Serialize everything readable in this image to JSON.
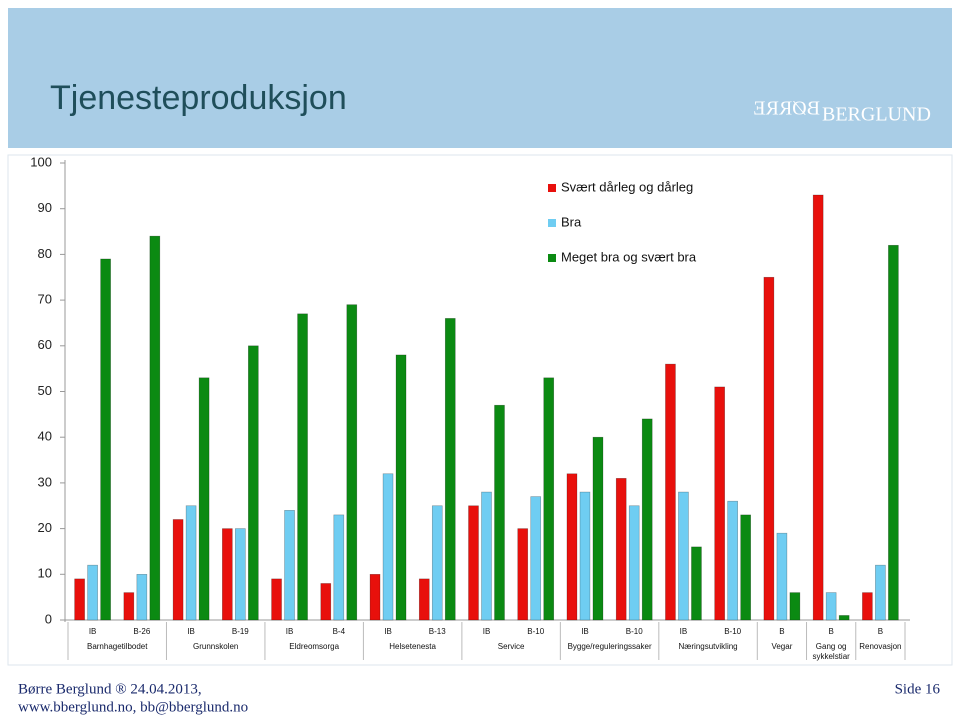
{
  "chart_data": {
    "type": "bar",
    "title": "Tjenesteproduksjon",
    "groups": [
      {
        "label": "Barnhagetilbodet",
        "categories": [
          "IB",
          "B-26"
        ]
      },
      {
        "label": "Grunnskolen",
        "categories": [
          "IB",
          "B-19"
        ]
      },
      {
        "label": "Eldreomsorga",
        "categories": [
          "IB",
          "B-4"
        ]
      },
      {
        "label": "Helsetenesta",
        "categories": [
          "IB",
          "B-13"
        ]
      },
      {
        "label": "Service",
        "categories": [
          "IB",
          "B-10"
        ]
      },
      {
        "label": "Bygge/reguleringssaker",
        "categories": [
          "IB",
          "B-10"
        ]
      },
      {
        "label": "Næringsutvikling",
        "categories": [
          "IB",
          "B-10"
        ]
      },
      {
        "label": "Vegar",
        "categories": [
          "B"
        ]
      },
      {
        "label": "Gang og sykkelstiar",
        "categories": [
          "B"
        ]
      },
      {
        "label": "Renovasjon",
        "categories": [
          "B"
        ]
      }
    ],
    "series": [
      {
        "name": "Svært dårleg og dårleg",
        "color": "#e8100c",
        "values": [
          9,
          6,
          22,
          20,
          9,
          8,
          10,
          9,
          25,
          20,
          32,
          31,
          56,
          51,
          75,
          93,
          6
        ]
      },
      {
        "name": "Bra",
        "color": "#6fcdf2",
        "values": [
          12,
          10,
          25,
          20,
          24,
          23,
          32,
          25,
          28,
          27,
          28,
          25,
          28,
          26,
          19,
          6,
          12
        ]
      },
      {
        "name": "Meget bra og svært bra",
        "color": "#0b8a12",
        "values": [
          79,
          84,
          53,
          60,
          67,
          69,
          58,
          66,
          47,
          53,
          40,
          44,
          16,
          23,
          6,
          1,
          82
        ]
      }
    ],
    "ylim": [
      0,
      100
    ],
    "yticks": [
      0,
      10,
      20,
      30,
      40,
      50,
      60,
      70,
      80,
      90,
      100
    ],
    "legend": "top-right"
  },
  "logo": {
    "mirrored": "BØRRE",
    "name": "BERGLUND"
  },
  "footer": {
    "line1": "Børre Berglund ® 24.04.2013,",
    "line2": "www.bberglund.no, bb@bberglund.no",
    "page": "Side 16"
  }
}
